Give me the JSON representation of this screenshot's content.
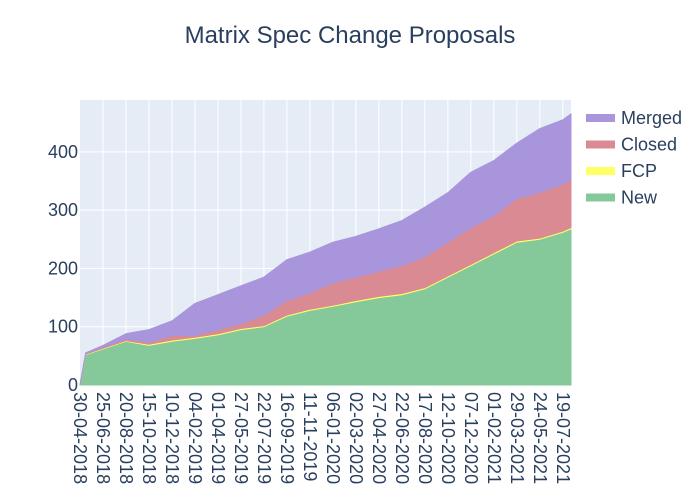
{
  "chart_data": {
    "type": "area",
    "stacked": true,
    "title": "Matrix Spec Change Proposals",
    "xlabel": "",
    "ylabel": "",
    "x_ticks": [
      "30-04-2018",
      "25-06-2018",
      "20-08-2018",
      "15-10-2018",
      "10-12-2018",
      "04-02-2019",
      "01-04-2019",
      "27-05-2019",
      "22-07-2019",
      "16-09-2019",
      "11-11-2019",
      "06-01-2020",
      "02-03-2020",
      "27-04-2020",
      "22-06-2020",
      "17-08-2020",
      "12-10-2020",
      "07-12-2020",
      "01-02-2021",
      "29-03-2021",
      "24-05-2021",
      "19-07-2021"
    ],
    "y_ticks": [
      0,
      100,
      200,
      300,
      400
    ],
    "ylim": [
      0,
      489
    ],
    "xlim": [
      "2018-04-30",
      "2021-08-08"
    ],
    "grid": true,
    "legend_position": "right",
    "x": [
      "2018-04-30",
      "2018-05-14",
      "2018-06-25",
      "2018-08-20",
      "2018-10-15",
      "2018-12-10",
      "2019-02-04",
      "2019-04-01",
      "2019-05-27",
      "2019-07-22",
      "2019-09-16",
      "2019-11-11",
      "2020-01-06",
      "2020-03-02",
      "2020-04-27",
      "2020-06-22",
      "2020-08-17",
      "2020-10-12",
      "2020-12-07",
      "2021-02-01",
      "2021-03-29",
      "2021-05-24",
      "2021-07-19",
      "2021-08-08"
    ],
    "series": [
      {
        "name": "New",
        "color": "#85c99b",
        "values": [
          0,
          52,
          62,
          75,
          68,
          75,
          80,
          86,
          95,
          100,
          118,
          128,
          135,
          143,
          150,
          155,
          165,
          185,
          205,
          225,
          245,
          250,
          262,
          268
        ]
      },
      {
        "name": "FCP",
        "color": "#ffff66",
        "values": [
          0,
          1,
          1,
          1,
          2,
          2,
          2,
          2,
          2,
          2,
          2,
          2,
          2,
          2,
          2,
          2,
          2,
          2,
          2,
          2,
          2,
          2,
          2,
          2
        ]
      },
      {
        "name": "Closed",
        "color": "#d98a93",
        "values": [
          0,
          1,
          2,
          3,
          3,
          8,
          3,
          7,
          8,
          18,
          25,
          28,
          38,
          40,
          43,
          48,
          53,
          58,
          63,
          63,
          73,
          78,
          81,
          82
        ]
      },
      {
        "name": "Merged",
        "color": "#a895dc",
        "values": [
          0,
          1,
          3,
          9,
          22,
          25,
          55,
          60,
          65,
          65,
          70,
          70,
          70,
          70,
          73,
          77,
          85,
          85,
          95,
          95,
          95,
          110,
          110,
          113
        ]
      }
    ],
    "legend_order": [
      "Merged",
      "Closed",
      "FCP",
      "New"
    ]
  }
}
